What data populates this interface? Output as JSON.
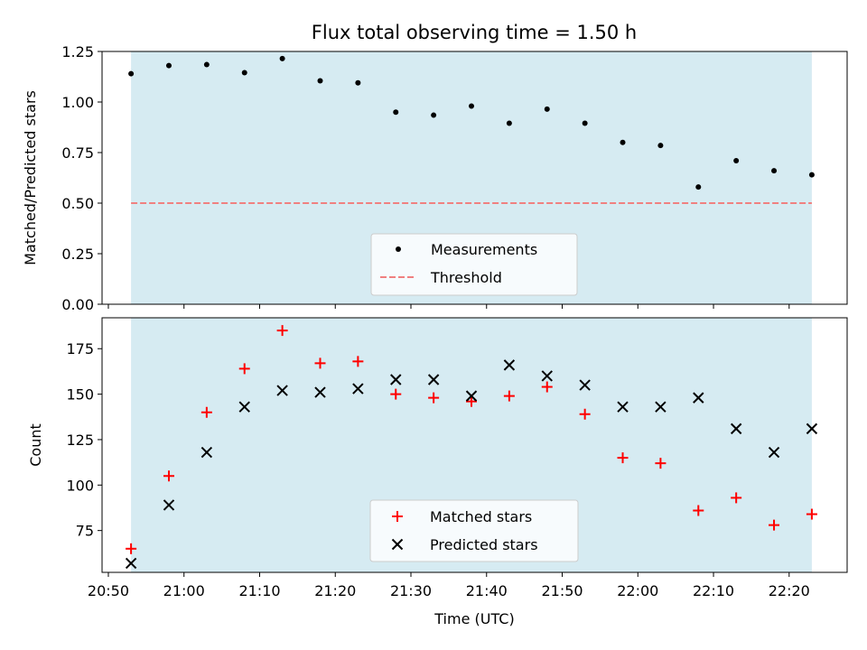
{
  "title": "Flux total observing time = 1.50 h",
  "colors": {
    "span": "#add8e6",
    "measurement": "#000000",
    "threshold": "#f08080",
    "matched": "#ff0000",
    "predicted": "#000000"
  },
  "chart_data": [
    {
      "type": "scatter",
      "ylabel": "Matched/Predicted stars",
      "ylim": [
        0,
        1.25
      ],
      "yticks": [
        "0.00",
        "0.25",
        "0.50",
        "0.75",
        "1.00",
        "1.25"
      ],
      "xlim": [
        "20:49:10",
        "22:27:40"
      ],
      "shaded_span": [
        "20:53:00",
        "22:23:00"
      ],
      "threshold": 0.5,
      "legend_position": "lower center",
      "legend": [
        "Measurements",
        "Threshold"
      ],
      "series": [
        {
          "name": "Measurements",
          "x": [
            "20:53",
            "20:58",
            "21:03",
            "21:08",
            "21:13",
            "21:18",
            "21:23",
            "21:28",
            "21:33",
            "21:38",
            "21:43",
            "21:48",
            "21:53",
            "21:58",
            "22:03",
            "22:08",
            "22:13",
            "22:18",
            "22:23"
          ],
          "y": [
            1.14,
            1.18,
            1.185,
            1.145,
            1.215,
            1.105,
            1.095,
            0.95,
            0.935,
            0.98,
            0.895,
            0.965,
            0.895,
            0.8,
            0.785,
            0.58,
            0.71,
            0.66,
            0.64
          ]
        }
      ]
    },
    {
      "type": "scatter",
      "xlabel": "Time (UTC)",
      "ylabel": "Count",
      "ylim": [
        52,
        192
      ],
      "yticks": [
        "75",
        "100",
        "125",
        "150",
        "175"
      ],
      "xticks": [
        "20:50",
        "21:00",
        "21:10",
        "21:20",
        "21:30",
        "21:40",
        "21:50",
        "22:00",
        "22:10",
        "22:20"
      ],
      "xlim": [
        "20:49:10",
        "22:27:40"
      ],
      "shaded_span": [
        "20:53:00",
        "22:23:00"
      ],
      "legend_position": "lower center",
      "legend": [
        "Matched stars",
        "Predicted stars"
      ],
      "series": [
        {
          "name": "Matched stars",
          "x": [
            "20:53",
            "20:58",
            "21:03",
            "21:08",
            "21:13",
            "21:18",
            "21:23",
            "21:28",
            "21:33",
            "21:38",
            "21:43",
            "21:48",
            "21:53",
            "21:58",
            "22:03",
            "22:08",
            "22:13",
            "22:18",
            "22:23"
          ],
          "y": [
            65,
            105,
            140,
            164,
            185,
            167,
            168,
            150,
            148,
            146,
            149,
            154,
            139,
            115,
            112,
            86,
            93,
            78,
            84
          ]
        },
        {
          "name": "Predicted stars",
          "x": [
            "20:53",
            "20:58",
            "21:03",
            "21:08",
            "21:13",
            "21:18",
            "21:23",
            "21:28",
            "21:33",
            "21:38",
            "21:43",
            "21:48",
            "21:53",
            "21:58",
            "22:03",
            "22:08",
            "22:13",
            "22:18",
            "22:23"
          ],
          "y": [
            57,
            89,
            118,
            143,
            152,
            151,
            153,
            158,
            158,
            149,
            166,
            160,
            155,
            143,
            143,
            148,
            131,
            118,
            131
          ]
        }
      ]
    }
  ]
}
